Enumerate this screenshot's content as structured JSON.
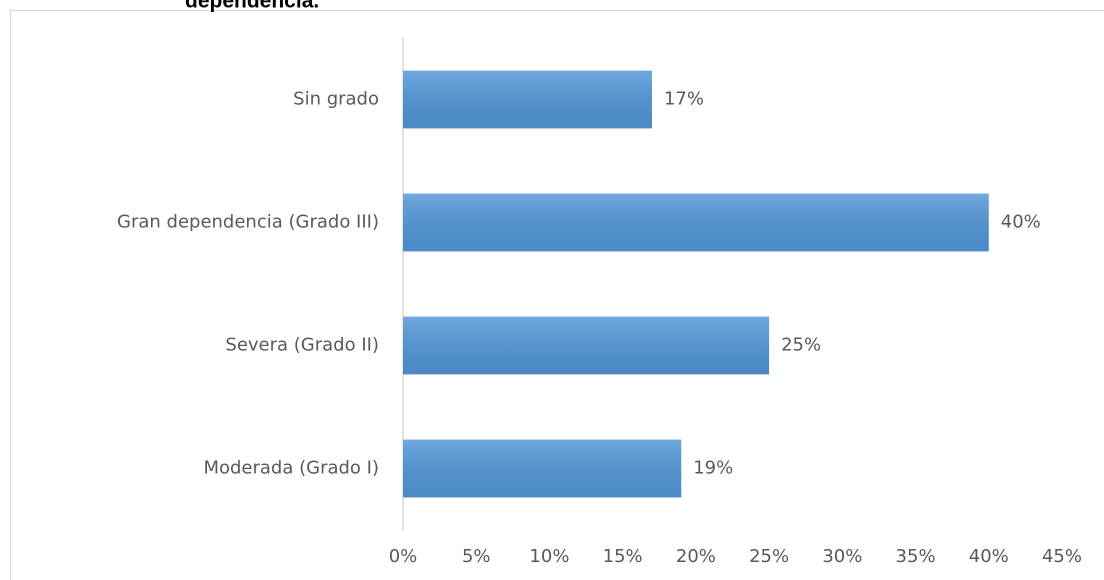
{
  "chart_data": {
    "type": "bar",
    "orientation": "horizontal",
    "title": "dependencia.",
    "categories": [
      "Sin grado",
      "Gran dependencia (Grado III)",
      "Severa (Grado II)",
      "Moderada (Grado I)"
    ],
    "values": [
      17,
      40,
      25,
      19
    ],
    "value_labels": [
      "17%",
      "40%",
      "25%",
      "19%"
    ],
    "color": "#5096d8",
    "xlim": [
      0,
      45
    ],
    "xticks": [
      {
        "value": 0,
        "label": "0%"
      },
      {
        "value": 5,
        "label": "5%"
      },
      {
        "value": 10,
        "label": "10%"
      },
      {
        "value": 15,
        "label": "15%"
      },
      {
        "value": 20,
        "label": "20%"
      },
      {
        "value": 25,
        "label": "25%"
      },
      {
        "value": 30,
        "label": "30%"
      },
      {
        "value": 35,
        "label": "35%"
      },
      {
        "value": 40,
        "label": "40%"
      },
      {
        "value": 45,
        "label": "45%"
      }
    ],
    "grid": false
  }
}
